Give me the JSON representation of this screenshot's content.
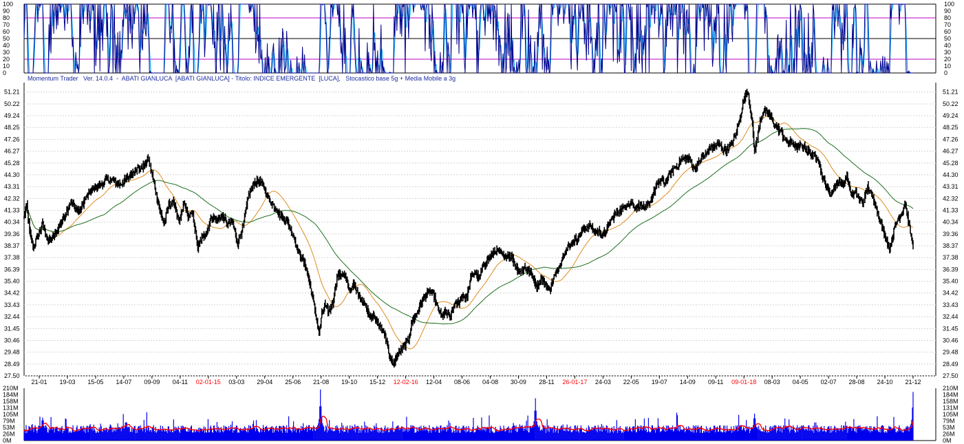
{
  "header": {
    "caption": "Momentum Trader   Ver. 14.0.4  -  ABATI GIANLUCA  [ABATI GIANLUCA] - Titolo: INDICE EMERGENTE  [LUCA],   Stocastico base 5g + Media Mobile a 3g"
  },
  "colors": {
    "price": "#000000",
    "ma_orange": "#e08a1e",
    "ma_green": "#1c6e1c",
    "stoch_main": "#00008b",
    "stoch_signal": "#00aaff",
    "stoch_bands": "#c000c0",
    "volume_bars": "#0000ee",
    "volume_ma": "#ff0000",
    "date_highlight": "#ff0000",
    "axis_text": "#000000"
  },
  "chart_data": [
    {
      "type": "line",
      "panel": "stochastic",
      "ylim": [
        0,
        100
      ],
      "ytick_labels": [
        "0",
        "10",
        "20",
        "30",
        "40",
        "50",
        "60",
        "70",
        "80",
        "90",
        "100"
      ],
      "reference_lines": [
        20,
        50,
        80
      ],
      "series": []
    },
    {
      "type": "line",
      "panel": "price",
      "ylim": [
        27.5,
        52.0
      ],
      "ytick_labels": [
        "27.50",
        "28.49",
        "29.48",
        "30.46",
        "31.45",
        "32.44",
        "33.43",
        "34.42",
        "35.40",
        "36.39",
        "37.38",
        "38.37",
        "39.36",
        "40.34",
        "41.33",
        "42.32",
        "43.31",
        "44.30",
        "45.28",
        "46.27",
        "47.26",
        "48.25",
        "49.24",
        "50.22",
        "51.21"
      ],
      "x_labels": [
        {
          "text": "21-01",
          "highlight": false
        },
        {
          "text": "19-03",
          "highlight": false
        },
        {
          "text": "15-05",
          "highlight": false
        },
        {
          "text": "14-07",
          "highlight": false
        },
        {
          "text": "09-09",
          "highlight": false
        },
        {
          "text": "04-11",
          "highlight": false
        },
        {
          "text": "02-01-15",
          "highlight": true
        },
        {
          "text": "03-03",
          "highlight": false
        },
        {
          "text": "29-04",
          "highlight": false
        },
        {
          "text": "25-06",
          "highlight": false
        },
        {
          "text": "21-08",
          "highlight": false
        },
        {
          "text": "19-10",
          "highlight": false
        },
        {
          "text": "15-12",
          "highlight": false
        },
        {
          "text": "12-02-16",
          "highlight": true
        },
        {
          "text": "12-04",
          "highlight": false
        },
        {
          "text": "08-06",
          "highlight": false
        },
        {
          "text": "04-08",
          "highlight": false
        },
        {
          "text": "30-09",
          "highlight": false
        },
        {
          "text": "28-11",
          "highlight": false
        },
        {
          "text": "26-01-17",
          "highlight": true
        },
        {
          "text": "24-03",
          "highlight": false
        },
        {
          "text": "22-05",
          "highlight": false
        },
        {
          "text": "19-07",
          "highlight": false
        },
        {
          "text": "14-09",
          "highlight": false
        },
        {
          "text": "09-11",
          "highlight": false
        },
        {
          "text": "09-01-18",
          "highlight": true
        },
        {
          "text": "08-03",
          "highlight": false
        },
        {
          "text": "04-05",
          "highlight": false
        },
        {
          "text": "02-07",
          "highlight": false
        },
        {
          "text": "28-08",
          "highlight": false
        },
        {
          "text": "24-10",
          "highlight": false
        },
        {
          "text": "21-12",
          "highlight": false
        }
      ],
      "anchors": [
        [
          0,
          40.8
        ],
        [
          4,
          41.8
        ],
        [
          8,
          39.6
        ],
        [
          13,
          38.2
        ],
        [
          20,
          39.2
        ],
        [
          27,
          40.2
        ],
        [
          35,
          38.8
        ],
        [
          45,
          39.3
        ],
        [
          55,
          40.5
        ],
        [
          68,
          42.0
        ],
        [
          80,
          41.2
        ],
        [
          90,
          42.4
        ],
        [
          100,
          43.2
        ],
        [
          110,
          43.4
        ],
        [
          120,
          43.9
        ],
        [
          130,
          43.8
        ],
        [
          140,
          43.5
        ],
        [
          150,
          44.0
        ],
        [
          162,
          44.8
        ],
        [
          170,
          44.8
        ],
        [
          180,
          45.6
        ],
        [
          186,
          44.3
        ],
        [
          192,
          42.6
        ],
        [
          198,
          41.2
        ],
        [
          203,
          40.2
        ],
        [
          210,
          41.8
        ],
        [
          218,
          42.0
        ],
        [
          225,
          40.2
        ],
        [
          232,
          42.0
        ],
        [
          238,
          40.8
        ],
        [
          245,
          41.0
        ],
        [
          252,
          38.2
        ],
        [
          258,
          39.0
        ],
        [
          265,
          39.5
        ],
        [
          272,
          40.8
        ],
        [
          280,
          40.5
        ],
        [
          288,
          40.8
        ],
        [
          295,
          40.2
        ],
        [
          302,
          40.4
        ],
        [
          310,
          38.6
        ],
        [
          318,
          40.0
        ],
        [
          326,
          42.6
        ],
        [
          334,
          43.6
        ],
        [
          342,
          43.8
        ],
        [
          350,
          43.0
        ],
        [
          358,
          42.0
        ],
        [
          366,
          41.5
        ],
        [
          372,
          40.8
        ],
        [
          380,
          40.6
        ],
        [
          386,
          39.8
        ],
        [
          392,
          39.0
        ],
        [
          398,
          37.8
        ],
        [
          404,
          37.2
        ],
        [
          410,
          36.4
        ],
        [
          416,
          34.8
        ],
        [
          422,
          33.0
        ],
        [
          428,
          31.0
        ],
        [
          432,
          32.6
        ],
        [
          436,
          33.4
        ],
        [
          442,
          32.8
        ],
        [
          448,
          33.6
        ],
        [
          454,
          35.8
        ],
        [
          460,
          36.0
        ],
        [
          466,
          35.8
        ],
        [
          472,
          34.6
        ],
        [
          478,
          35.2
        ],
        [
          484,
          34.4
        ],
        [
          490,
          34.0
        ],
        [
          496,
          33.2
        ],
        [
          502,
          32.6
        ],
        [
          508,
          32.4
        ],
        [
          514,
          31.8
        ],
        [
          520,
          31.4
        ],
        [
          526,
          30.5
        ],
        [
          530,
          29.2
        ],
        [
          535,
          28.4
        ],
        [
          540,
          29.0
        ],
        [
          546,
          29.5
        ],
        [
          552,
          30.0
        ],
        [
          558,
          30.6
        ],
        [
          564,
          32.2
        ],
        [
          570,
          32.8
        ],
        [
          576,
          33.6
        ],
        [
          582,
          34.2
        ],
        [
          588,
          34.6
        ],
        [
          594,
          34.4
        ],
        [
          600,
          33.2
        ],
        [
          606,
          32.5
        ],
        [
          612,
          32.8
        ],
        [
          618,
          32.4
        ],
        [
          624,
          33.4
        ],
        [
          630,
          33.6
        ],
        [
          636,
          34.2
        ],
        [
          642,
          34.0
        ],
        [
          648,
          35.6
        ],
        [
          654,
          36.2
        ],
        [
          660,
          35.6
        ],
        [
          666,
          36.6
        ],
        [
          672,
          37.2
        ],
        [
          678,
          37.6
        ],
        [
          684,
          38.0
        ],
        [
          690,
          37.8
        ],
        [
          696,
          37.4
        ],
        [
          702,
          37.6
        ],
        [
          708,
          37.4
        ],
        [
          714,
          36.6
        ],
        [
          720,
          36.2
        ],
        [
          726,
          36.6
        ],
        [
          732,
          36.2
        ],
        [
          738,
          35.8
        ],
        [
          744,
          35.0
        ],
        [
          750,
          35.6
        ],
        [
          756,
          35.2
        ],
        [
          762,
          34.6
        ],
        [
          768,
          35.6
        ],
        [
          774,
          36.4
        ],
        [
          780,
          37.2
        ],
        [
          786,
          38.0
        ],
        [
          792,
          38.4
        ],
        [
          798,
          38.8
        ],
        [
          804,
          39.0
        ],
        [
          810,
          39.6
        ],
        [
          816,
          39.9
        ],
        [
          822,
          40.1
        ],
        [
          828,
          39.5
        ],
        [
          834,
          39.6
        ],
        [
          840,
          39.2
        ],
        [
          846,
          39.8
        ],
        [
          852,
          40.6
        ],
        [
          858,
          41.0
        ],
        [
          864,
          41.3
        ],
        [
          870,
          41.5
        ],
        [
          876,
          41.8
        ],
        [
          882,
          41.9
        ],
        [
          888,
          41.6
        ],
        [
          894,
          41.8
        ],
        [
          900,
          41.4
        ],
        [
          906,
          41.8
        ],
        [
          912,
          42.6
        ],
        [
          918,
          43.4
        ],
        [
          924,
          43.8
        ],
        [
          930,
          43.6
        ],
        [
          936,
          44.2
        ],
        [
          942,
          44.8
        ],
        [
          948,
          45.0
        ],
        [
          954,
          45.6
        ],
        [
          960,
          45.6
        ],
        [
          966,
          45.6
        ],
        [
          972,
          44.8
        ],
        [
          978,
          45.2
        ],
        [
          984,
          45.8
        ],
        [
          990,
          46.0
        ],
        [
          996,
          46.6
        ],
        [
          1002,
          46.6
        ],
        [
          1008,
          46.9
        ],
        [
          1014,
          46.4
        ],
        [
          1020,
          46.4
        ],
        [
          1026,
          46.9
        ],
        [
          1032,
          47.5
        ],
        [
          1038,
          48.8
        ],
        [
          1044,
          50.5
        ],
        [
          1050,
          51.4
        ],
        [
          1056,
          49.0
        ],
        [
          1060,
          46.2
        ],
        [
          1064,
          47.4
        ],
        [
          1068,
          48.8
        ],
        [
          1074,
          49.6
        ],
        [
          1080,
          49.5
        ],
        [
          1086,
          48.8
        ],
        [
          1092,
          48.2
        ],
        [
          1098,
          47.9
        ],
        [
          1104,
          47.2
        ],
        [
          1110,
          47.0
        ],
        [
          1116,
          46.9
        ],
        [
          1122,
          46.6
        ],
        [
          1128,
          46.8
        ],
        [
          1134,
          46.5
        ],
        [
          1140,
          46.1
        ],
        [
          1146,
          45.9
        ],
        [
          1152,
          45.8
        ],
        [
          1158,
          44.2
        ],
        [
          1164,
          43.4
        ],
        [
          1170,
          42.6
        ],
        [
          1176,
          43.2
        ],
        [
          1182,
          43.8
        ],
        [
          1188,
          43.4
        ],
        [
          1194,
          44.2
        ],
        [
          1200,
          42.6
        ],
        [
          1206,
          42.8
        ],
        [
          1212,
          42.2
        ],
        [
          1218,
          42.0
        ],
        [
          1224,
          43.3
        ],
        [
          1230,
          42.6
        ],
        [
          1236,
          41.8
        ],
        [
          1240,
          40.8
        ],
        [
          1246,
          39.8
        ],
        [
          1252,
          38.8
        ],
        [
          1256,
          38.0
        ],
        [
          1262,
          39.6
        ],
        [
          1268,
          40.6
        ],
        [
          1274,
          41.2
        ],
        [
          1278,
          42.0
        ],
        [
          1282,
          40.8
        ],
        [
          1286,
          39.5
        ],
        [
          1290,
          38.3
        ]
      ],
      "moving_averages": [
        {
          "color_key": "ma_orange",
          "period": 40
        },
        {
          "color_key": "ma_green",
          "period": 110
        }
      ]
    },
    {
      "type": "bar",
      "panel": "volume",
      "ylim": [
        0,
        210
      ],
      "ytick_labels": [
        "0M",
        "26M",
        "53M",
        "79M",
        "105M",
        "131M",
        "158M",
        "184M",
        "210M"
      ],
      "spikes": [
        [
          27,
          92
        ],
        [
          148,
          74
        ],
        [
          430,
          205
        ],
        [
          742,
          170
        ],
        [
          1060,
          108
        ],
        [
          1290,
          195
        ]
      ]
    }
  ]
}
